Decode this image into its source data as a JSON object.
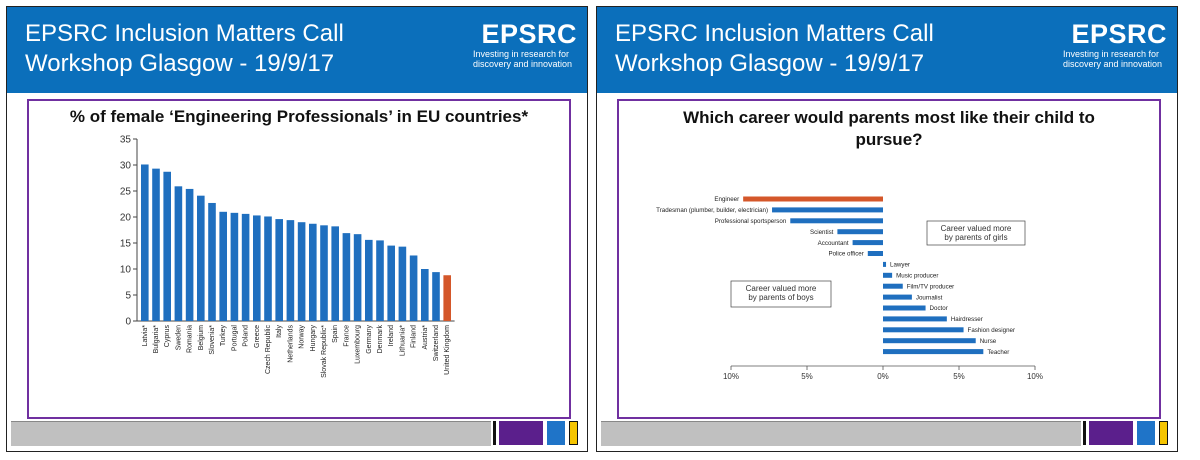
{
  "slides": [
    {
      "header_title": "EPSRC Inclusion Matters Call Workshop Glasgow - 19/9/17",
      "logo_word": "EPSRC",
      "logo_tagline": "Investing in research for discovery and innovation",
      "chart_title": "% of female ‘Engineering Professionals’ in EU countries*"
    },
    {
      "header_title": "EPSRC Inclusion Matters Call Workshop Glasgow - 19/9/17",
      "logo_word": "EPSRC",
      "logo_tagline": "Investing in research for discovery and innovation",
      "chart_title": "Which career would parents most like their child to pursue?"
    }
  ],
  "colors": {
    "header_blue": "#0b6fbb",
    "bar_blue": "#1f6fbf",
    "highlight_orange": "#d4572a",
    "frame_purple": "#7030a0",
    "footer_grey": "#c0c0c0",
    "footer_purple": "#5b1f8c",
    "footer_blue": "#1f74c8",
    "footer_yellow": "#f5c400"
  },
  "chart_data": [
    {
      "type": "bar",
      "title": "% of female ‘Engineering Professionals’ in EU countries*",
      "categories": [
        "Latvia*",
        "Bulgaria*",
        "Cyprus",
        "Sweden",
        "Romania",
        "Belgium",
        "Slovenia*",
        "Turkey",
        "Portugal",
        "Poland",
        "Greece",
        "Czech Republic",
        "Italy",
        "Netherlands",
        "Norway",
        "Hungary",
        "Slovak Republic*",
        "Spain",
        "France",
        "Luxembourg",
        "Germany",
        "Denmark",
        "Ireland",
        "Lithuania*",
        "Finland",
        "Austria*",
        "Switzerland",
        "United Kingdom"
      ],
      "values": [
        30.1,
        29.3,
        28.7,
        25.9,
        25.4,
        24.1,
        22.7,
        21.0,
        20.8,
        20.6,
        20.3,
        20.1,
        19.6,
        19.4,
        19.0,
        18.7,
        18.4,
        18.2,
        16.9,
        16.7,
        15.6,
        15.5,
        14.5,
        14.3,
        12.6,
        10.0,
        9.4,
        8.8
      ],
      "highlight": "United Kingdom",
      "yticks": [
        0,
        5,
        10,
        15,
        20,
        25,
        30,
        35
      ],
      "ylim": [
        0,
        35
      ],
      "grid": false
    },
    {
      "type": "bar",
      "orientation": "horizontal",
      "title": "Which career would parents most like their child to pursue?",
      "categories": [
        "Engineer",
        "Tradesman (plumber, builder, electrician)",
        "Professional sportsperson",
        "Scientist",
        "Accountant",
        "Police officer",
        "Lawyer",
        "Music producer",
        "Film/TV producer",
        "Journalist",
        "Doctor",
        "Hairdresser",
        "Fashion designer",
        "Nurse",
        "Teacher"
      ],
      "values": [
        -9.2,
        -7.3,
        -6.1,
        -3.0,
        -2.0,
        -1.0,
        0.2,
        0.6,
        1.3,
        1.9,
        2.8,
        4.2,
        5.3,
        6.1,
        6.6
      ],
      "highlight": "Engineer",
      "xticks": [
        "10%",
        "5%",
        "0%",
        "5%",
        "10%"
      ],
      "xlim": [
        -10,
        10
      ],
      "annotations": [
        "Career valued more by parents of girls",
        "Career valued more by parents of boys"
      ],
      "grid": false
    }
  ]
}
